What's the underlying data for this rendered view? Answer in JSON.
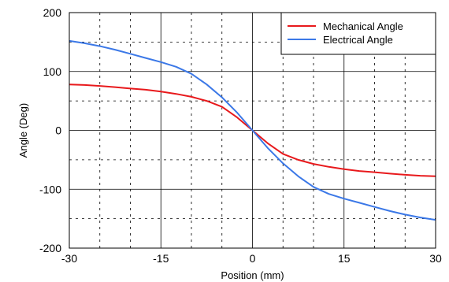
{
  "chart_data": {
    "type": "line",
    "xlabel": "Position (mm)",
    "ylabel": "Angle (Deg)",
    "xlim": [
      -30,
      30
    ],
    "ylim": [
      -200,
      200
    ],
    "x_ticks": [
      "-30",
      "-15",
      "0",
      "15",
      "30"
    ],
    "y_ticks": [
      "200",
      "100",
      "0",
      "-100",
      "-200"
    ],
    "x_tick_values": [
      -30,
      -15,
      0,
      15,
      30
    ],
    "y_tick_values": [
      200,
      100,
      0,
      -100,
      -200
    ],
    "minor_x": [
      -25,
      -20,
      -10,
      -5,
      5,
      10,
      20,
      25
    ],
    "minor_y": [
      150,
      50,
      -50,
      -150
    ],
    "grid": true,
    "legend_position": "top-right",
    "x": [
      -30,
      -27.5,
      -25,
      -22.5,
      -20,
      -17.5,
      -15,
      -12.5,
      -10,
      -7.5,
      -5,
      -2.5,
      0,
      2.5,
      5,
      7.5,
      10,
      12.5,
      15,
      17.5,
      20,
      22.5,
      25,
      27.5,
      30
    ],
    "series": [
      {
        "name": "Mechanical Angle",
        "color": "#e8191c",
        "values": [
          78,
          77,
          75.5,
          73.5,
          71,
          69,
          66,
          62,
          57,
          50,
          40,
          22,
          0,
          -22,
          -40,
          -50,
          -57,
          -62,
          -66,
          -69,
          -71,
          -73.5,
          -75.5,
          -77,
          -78
        ]
      },
      {
        "name": "Electrical Angle",
        "color": "#3b78e7",
        "values": [
          152,
          148,
          143,
          137,
          130,
          123,
          116,
          108,
          96,
          78,
          56,
          30,
          0,
          -30,
          -56,
          -78,
          -96,
          -108,
          -116,
          -123,
          -130,
          -137,
          -143,
          -148,
          -152
        ]
      }
    ]
  }
}
